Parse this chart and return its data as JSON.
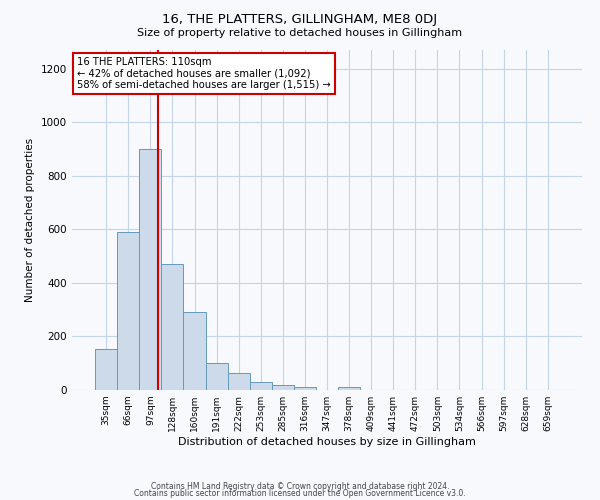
{
  "title": "16, THE PLATTERS, GILLINGHAM, ME8 0DJ",
  "subtitle": "Size of property relative to detached houses in Gillingham",
  "xlabel": "Distribution of detached houses by size in Gillingham",
  "ylabel": "Number of detached properties",
  "bar_labels": [
    "35sqm",
    "66sqm",
    "97sqm",
    "128sqm",
    "160sqm",
    "191sqm",
    "222sqm",
    "253sqm",
    "285sqm",
    "316sqm",
    "347sqm",
    "378sqm",
    "409sqm",
    "441sqm",
    "472sqm",
    "503sqm",
    "534sqm",
    "566sqm",
    "597sqm",
    "628sqm",
    "659sqm"
  ],
  "bar_values": [
    155,
    590,
    900,
    470,
    290,
    100,
    65,
    30,
    17,
    13,
    0,
    10,
    0,
    0,
    0,
    0,
    0,
    0,
    0,
    0,
    0
  ],
  "bar_color": "#ccdaea",
  "bar_edge_color": "#6699bb",
  "vline_x": 2.35,
  "vline_color": "#cc0000",
  "annotation_title": "16 THE PLATTERS: 110sqm",
  "annotation_line1": "← 42% of detached houses are smaller (1,092)",
  "annotation_line2": "58% of semi-detached houses are larger (1,515) →",
  "annotation_box_edge": "#cc0000",
  "ylim": [
    0,
    1270
  ],
  "yticks": [
    0,
    200,
    400,
    600,
    800,
    1000,
    1200
  ],
  "footer1": "Contains HM Land Registry data © Crown copyright and database right 2024.",
  "footer2": "Contains public sector information licensed under the Open Government Licence v3.0.",
  "bg_color": "#f7f9fc",
  "grid_color": "#c5d5e5"
}
